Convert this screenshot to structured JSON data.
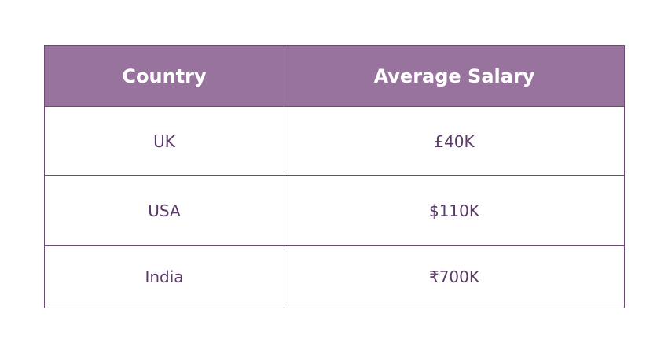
{
  "table": {
    "headers": [
      "Country",
      "Average Salary"
    ],
    "rows": [
      [
        "UK",
        "£40K"
      ],
      [
        "USA",
        "$110K"
      ],
      [
        "India",
        "₹700K"
      ]
    ]
  },
  "colors": {
    "header_bg": "#98739e",
    "header_text": "#ffffff",
    "border": "#6b4a76",
    "cell_text": "#5b3a67"
  }
}
